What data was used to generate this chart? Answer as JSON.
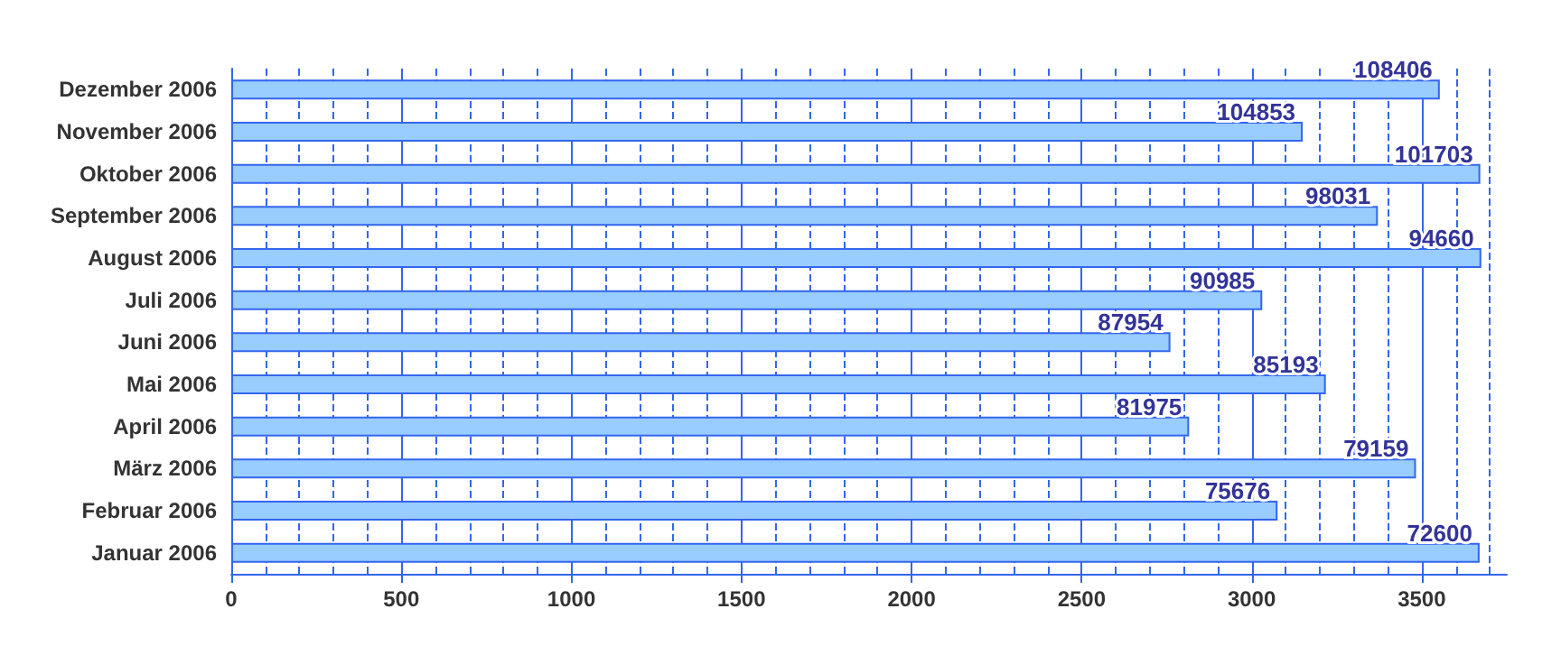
{
  "chart_data": {
    "type": "bar",
    "orientation": "horizontal",
    "categories": [
      "Dezember 2006",
      "November 2006",
      "Oktober 2006",
      "September 2006",
      "August 2006",
      "Juli 2006",
      "Juni 2006",
      "Mai 2006",
      "April 2006",
      "März 2006",
      "Februar 2006",
      "Januar 2006"
    ],
    "values": [
      3553,
      3150,
      3672,
      3371,
      3675,
      3031,
      2761,
      3218,
      2816,
      3483,
      3076,
      3670
    ],
    "color": "#99ccff",
    "xlim": [
      0,
      3750
    ],
    "xticks": [
      0,
      {
        "value": 100,
        "label": null
      },
      {
        "value": 200,
        "label": null
      },
      {
        "value": 300,
        "label": null
      },
      {
        "value": 400,
        "label": null
      },
      500,
      {
        "value": 600,
        "label": null
      },
      {
        "value": 700,
        "label": null
      },
      {
        "value": 800,
        "label": null
      },
      {
        "value": 900,
        "label": null
      },
      1000,
      {
        "value": 1100,
        "label": null
      },
      {
        "value": 1200,
        "label": null
      },
      {
        "value": 1300,
        "label": null
      },
      {
        "value": 1400,
        "label": null
      },
      1500,
      {
        "value": 1600,
        "label": null
      },
      {
        "value": 1700,
        "label": null
      },
      {
        "value": 1800,
        "label": null
      },
      {
        "value": 1900,
        "label": null
      },
      2000,
      {
        "value": 2100,
        "label": null
      },
      {
        "value": 2200,
        "label": null
      },
      {
        "value": 2300,
        "label": null
      },
      {
        "value": 2400,
        "label": null
      },
      2500,
      {
        "value": 2600,
        "label": null
      },
      {
        "value": 2700,
        "label": null
      },
      {
        "value": 2800,
        "label": null
      },
      {
        "value": 2900,
        "label": null
      },
      3000,
      {
        "value": 3100,
        "label": null
      },
      {
        "value": 3200,
        "label": null
      },
      {
        "value": 3300,
        "label": null
      },
      {
        "value": 3400,
        "label": null
      },
      3500,
      {
        "value": 3600,
        "label": null
      },
      {
        "value": 3700,
        "label": null
      }
    ],
    "grid": "x",
    "annotations": [
      "108406",
      "104853",
      "101703",
      "98031",
      "94660",
      "90985",
      "87954",
      "85193",
      "81975",
      "79159",
      "75676",
      "72600"
    ]
  }
}
